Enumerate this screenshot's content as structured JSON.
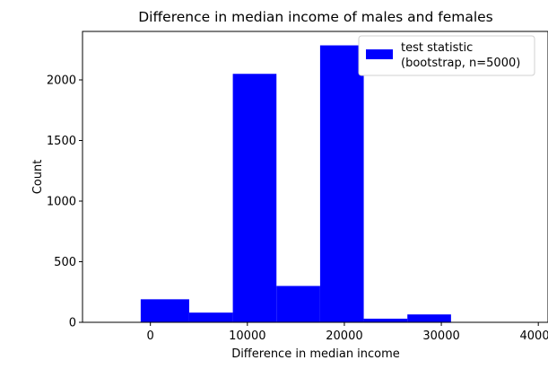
{
  "chart_data": {
    "type": "bar",
    "title": "Difference in median income of males and females",
    "xlabel": "Difference in median income",
    "ylabel": "Count",
    "xlim": [
      -7000,
      41000
    ],
    "ylim": [
      0,
      2400
    ],
    "xticks": [
      0,
      10000,
      20000,
      30000,
      40000
    ],
    "yticks": [
      0,
      500,
      1000,
      1500,
      2000
    ],
    "grid": false,
    "legend_position": "top-right",
    "bar_color": "#0000ff",
    "series": [
      {
        "name": "test statistic\n(bootstrap, n=5000)",
        "bins": [
          {
            "x0": -1000,
            "x1": 4000,
            "count": 190
          },
          {
            "x0": 4000,
            "x1": 8500,
            "count": 80
          },
          {
            "x0": 8500,
            "x1": 13000,
            "count": 2050
          },
          {
            "x0": 13000,
            "x1": 17500,
            "count": 300
          },
          {
            "x0": 17500,
            "x1": 22000,
            "count": 2285
          },
          {
            "x0": 22000,
            "x1": 26500,
            "count": 30
          },
          {
            "x0": 26500,
            "x1": 31000,
            "count": 65
          }
        ]
      }
    ],
    "legend": {
      "lines": [
        "test statistic",
        "(bootstrap, n=5000)"
      ]
    }
  }
}
